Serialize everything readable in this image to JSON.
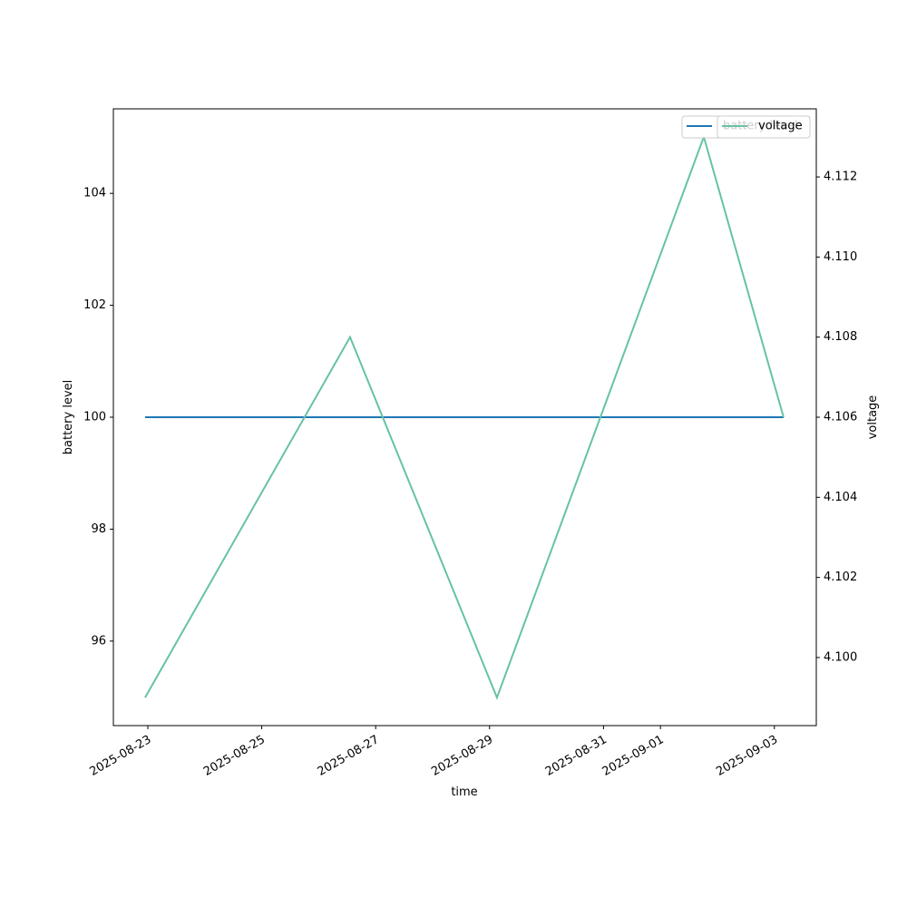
{
  "chart_data": {
    "type": "line",
    "x_label": "time",
    "y_label": "battery level",
    "y2_label": "voltage",
    "x": [
      "2025-08-22T22:51",
      "2025-08-26T13:13",
      "2025-08-29T03:07",
      "2025-09-01T18:16",
      "2025-09-03T03:53"
    ],
    "series": [
      {
        "name": "battery level",
        "color": "#1f77b4",
        "values": [
          100,
          100,
          100,
          100,
          100
        ]
      },
      {
        "name": "voltage",
        "color": "#66c2a5",
        "axis": "y2",
        "values": [
          4.099,
          4.108,
          4.099,
          4.113,
          4.106
        ]
      }
    ],
    "xlim": [
      "2025-08-22T09:29",
      "2025-09-03T17:40"
    ],
    "xticks": [
      "2025-08-23",
      "2025-08-25",
      "2025-08-27",
      "2025-08-29",
      "2025-08-31",
      "2025-09-01",
      "2025-09-03"
    ],
    "ylim": [
      94.49,
      105.51
    ],
    "yticks": [
      96,
      98,
      100,
      102,
      104
    ],
    "y2lim": [
      4.0983,
      4.1137
    ],
    "y2ticks": [
      {
        "value": 4.1,
        "label": "4.100"
      },
      {
        "value": 4.102,
        "label": "4.102"
      },
      {
        "value": 4.104,
        "label": "4.104"
      },
      {
        "value": 4.106,
        "label": "4.106"
      },
      {
        "value": 4.108,
        "label": "4.108"
      },
      {
        "value": 4.11,
        "label": "4.110"
      },
      {
        "value": 4.112,
        "label": "4.112"
      }
    ],
    "grid": false,
    "legend": "upper right"
  }
}
